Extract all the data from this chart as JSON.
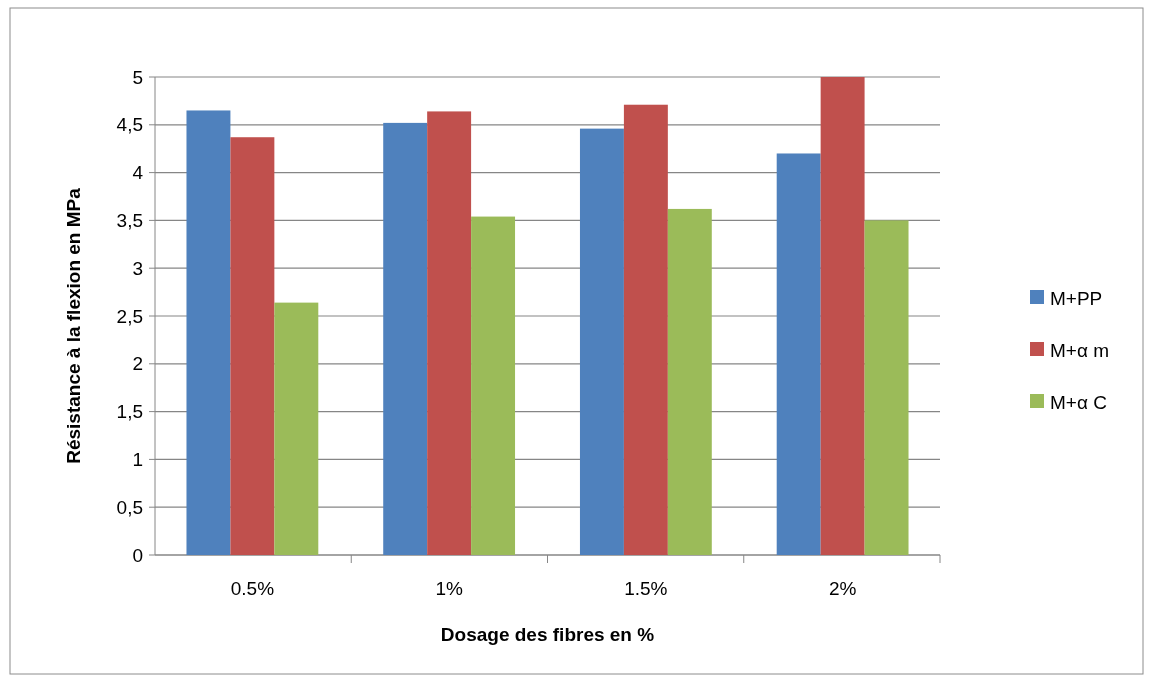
{
  "chart_data": {
    "type": "bar",
    "xlabel": "Dosage des fibres en %",
    "ylabel": "Résistance à la flexion en MPa",
    "categories": [
      "0.5%",
      "1%",
      "1.5%",
      "2%"
    ],
    "series": [
      {
        "name": "M+PP",
        "color": "#4f81bd",
        "values": [
          4.65,
          4.52,
          4.46,
          4.2
        ]
      },
      {
        "name": "M+α m",
        "color": "#c0504d",
        "values": [
          4.37,
          4.64,
          4.71,
          5.0
        ]
      },
      {
        "name": "M+α C",
        "color": "#9bbb59",
        "values": [
          2.64,
          3.54,
          3.62,
          3.5
        ]
      }
    ],
    "ylim": [
      0,
      5
    ],
    "yticks": [
      0,
      {
        "value": 0.5,
        "label": "0,5"
      },
      1,
      {
        "value": 1.5,
        "label": "1,5"
      },
      2,
      {
        "value": 2.5,
        "label": "2,5"
      },
      3,
      {
        "value": 3.5,
        "label": "3,5"
      },
      4,
      {
        "value": 4.5,
        "label": "4,5"
      },
      5
    ],
    "grid": "y",
    "legend": "right"
  }
}
